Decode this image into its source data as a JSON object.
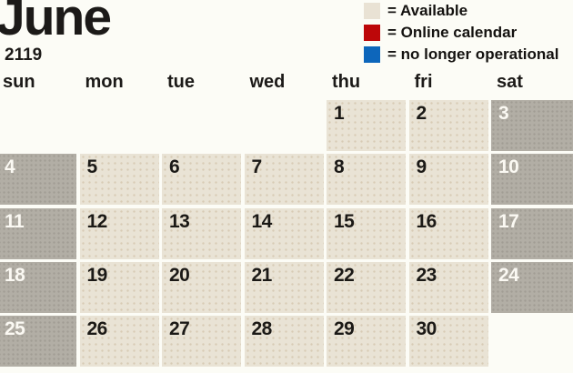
{
  "title": {
    "month": "June",
    "year": "2119"
  },
  "legend": {
    "items": [
      {
        "name": "available",
        "color": "#e9e2d4",
        "label": "= Available"
      },
      {
        "name": "online-calendar",
        "color": "#bd0709",
        "label": "= Online calendar"
      },
      {
        "name": "no-longer-operational",
        "color": "#0d66bb",
        "label": "= no longer operational"
      }
    ]
  },
  "calendar": {
    "day_headers": [
      "sun",
      "mon",
      "tue",
      "wed",
      "thu",
      "fri",
      "sat"
    ],
    "weeks": [
      [
        null,
        null,
        null,
        null,
        "1",
        "2",
        "3"
      ],
      [
        "4",
        "5",
        "6",
        "7",
        "8",
        "9",
        "10"
      ],
      [
        "11",
        "12",
        "13",
        "14",
        "15",
        "16",
        "17"
      ],
      [
        "18",
        "19",
        "20",
        "21",
        "22",
        "23",
        "24"
      ],
      [
        "25",
        "26",
        "27",
        "28",
        "29",
        "30",
        null
      ]
    ]
  },
  "colors": {
    "page_background": "#fcfcf6",
    "available_cell": "#e9e3d5",
    "weekend_cell": "#b2aea5",
    "text": "#1c1a18",
    "weekend_text": "#fbf9f3",
    "legend_red": "#bd0709",
    "legend_blue": "#0d66bb"
  }
}
